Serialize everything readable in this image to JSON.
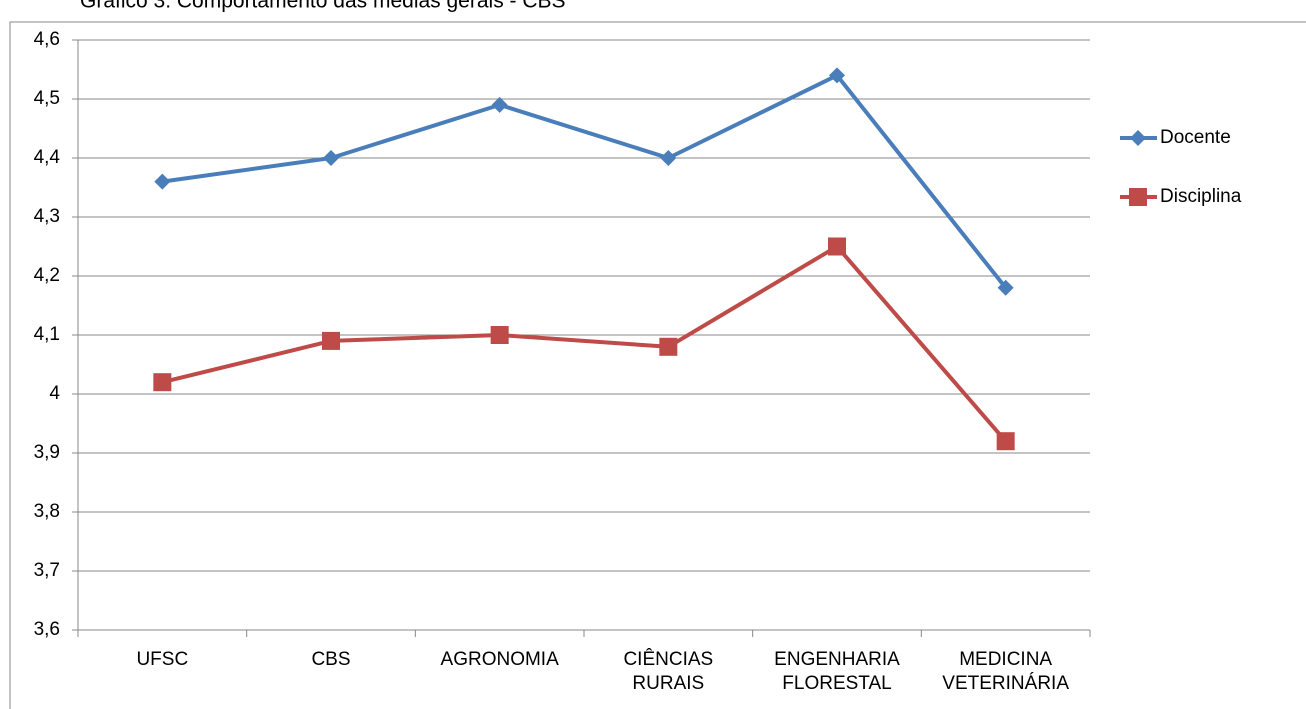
{
  "chart_data": {
    "type": "line",
    "title": "Gráfico 3: Comportamento das médias gerais - CBS",
    "categories": [
      "UFSC",
      "CBS",
      "AGRONOMIA",
      "CIÊNCIAS RURAIS",
      "ENGENHARIA FLORESTAL",
      "MEDICINA VETERINÁRIA"
    ],
    "series": [
      {
        "name": "Docente",
        "color": "#4a7ebb",
        "marker": "diamond",
        "values": [
          4.36,
          4.4,
          4.49,
          4.4,
          4.54,
          4.18
        ]
      },
      {
        "name": "Disciplina",
        "color": "#be4b48",
        "marker": "square",
        "values": [
          4.02,
          4.09,
          4.1,
          4.08,
          4.25,
          3.92
        ]
      }
    ],
    "ylim": [
      3.6,
      4.6
    ],
    "yticks": [
      {
        "value": 3.6,
        "label": "3,6"
      },
      {
        "value": 3.7,
        "label": "3,7"
      },
      {
        "value": 3.8,
        "label": "3,8"
      },
      {
        "value": 3.9,
        "label": "3,9"
      },
      4,
      {
        "value": 4.1,
        "label": "4,1"
      },
      {
        "value": 4.2,
        "label": "4,2"
      },
      {
        "value": 4.3,
        "label": "4,3"
      },
      {
        "value": 4.4,
        "label": "4,4"
      },
      {
        "value": 4.5,
        "label": "4,5"
      },
      {
        "value": 4.6,
        "label": "4,6"
      }
    ],
    "grid": true,
    "legend": "right"
  }
}
